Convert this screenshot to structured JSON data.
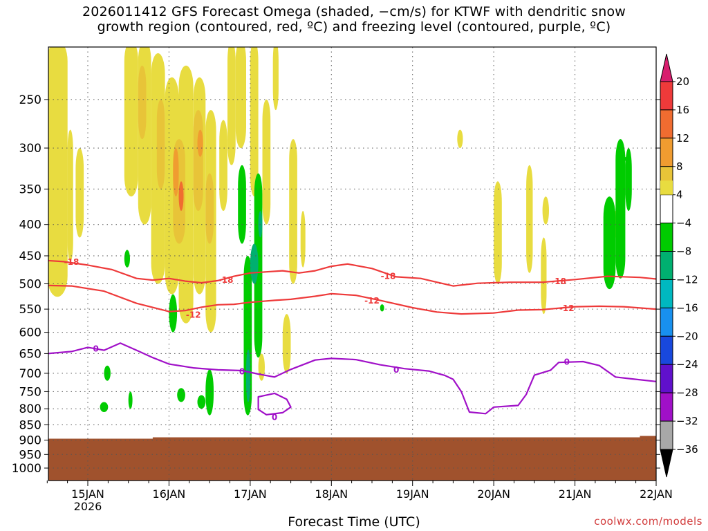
{
  "title": {
    "line1": "2026011412 GFS Forecast Omega (shaded, −cm/s) for KTWF with dendritic snow",
    "line2": "growth region (contoured, red, ºC) and freezing level (contoured, purple, ºC)"
  },
  "footer": {
    "xlabel": "Forecast Time (UTC)",
    "credit": "coolwx.com/models"
  },
  "chart_data": {
    "type": "heatmap",
    "xlabel": "Forecast Time (UTC)",
    "ylabel": "",
    "x_range": [
      "2026-01-14T12",
      "2026-01-22T00"
    ],
    "y_range_hpa": [
      200,
      1050
    ],
    "y_scale": "log-pressure",
    "x_ticks": [
      {
        "label": "15JAN",
        "sub": "2026",
        "day": 15
      },
      {
        "label": "16JAN",
        "sub": "",
        "day": 16
      },
      {
        "label": "17JAN",
        "sub": "",
        "day": 17
      },
      {
        "label": "18JAN",
        "sub": "",
        "day": 18
      },
      {
        "label": "19JAN",
        "sub": "",
        "day": 19
      },
      {
        "label": "20JAN",
        "sub": "",
        "day": 20
      },
      {
        "label": "21JAN",
        "sub": "",
        "day": 21
      },
      {
        "label": "22JAN",
        "sub": "",
        "day": 22
      }
    ],
    "y_ticks": [
      "250",
      "300",
      "350",
      "400",
      "450",
      "500",
      "550",
      "600",
      "650",
      "700",
      "750",
      "800",
      "850",
      "900",
      "950",
      "1000"
    ],
    "grid": true,
    "colorbar": {
      "labels": [
        "20",
        "16",
        "12",
        "8",
        "4",
        "−4",
        "−8",
        "−12",
        "−16",
        "−20",
        "−24",
        "−28",
        "−32",
        "−36"
      ],
      "colors": [
        "#d81e6e",
        "#ee3a3a",
        "#f06c30",
        "#f09c30",
        "#e8c438",
        "#e8dc40",
        "#ffffff",
        "#00cc00",
        "#00b070",
        "#00b8c0",
        "#1890ee",
        "#1848dd",
        "#6010cc",
        "#a010c8",
        "#a8a8a8",
        "#000000"
      ]
    },
    "contours": [
      {
        "name": "-18",
        "color": "#ee3a3a",
        "points": [
          [
            14.5,
            458
          ],
          [
            14.7,
            460
          ],
          [
            15.0,
            466
          ],
          [
            15.3,
            474
          ],
          [
            15.6,
            490
          ],
          [
            15.8,
            493
          ],
          [
            16.0,
            490
          ],
          [
            16.2,
            495
          ],
          [
            16.4,
            498
          ],
          [
            16.6,
            494
          ],
          [
            16.8,
            486
          ],
          [
            17.0,
            480
          ],
          [
            17.2,
            478
          ],
          [
            17.4,
            476
          ],
          [
            17.6,
            480
          ],
          [
            17.8,
            476
          ],
          [
            18.0,
            468
          ],
          [
            18.2,
            464
          ],
          [
            18.5,
            472
          ],
          [
            18.8,
            487
          ],
          [
            19.1,
            490
          ],
          [
            19.3,
            497
          ],
          [
            19.5,
            504
          ],
          [
            19.8,
            499
          ],
          [
            20.2,
            497
          ],
          [
            20.6,
            497
          ],
          [
            21.0,
            492
          ],
          [
            21.4,
            486
          ],
          [
            21.8,
            488
          ],
          [
            22.0,
            491
          ]
        ],
        "labels": [
          [
            14.8,
            460
          ],
          [
            16.7,
            492
          ],
          [
            18.7,
            485
          ],
          [
            20.8,
            495
          ]
        ]
      },
      {
        "name": "-12",
        "color": "#ee3a3a",
        "points": [
          [
            14.5,
            503
          ],
          [
            14.8,
            504
          ],
          [
            15.2,
            514
          ],
          [
            15.6,
            538
          ],
          [
            16.0,
            555
          ],
          [
            16.2,
            553
          ],
          [
            16.4,
            546
          ],
          [
            16.6,
            541
          ],
          [
            16.8,
            540
          ],
          [
            17.0,
            536
          ],
          [
            17.3,
            532
          ],
          [
            17.5,
            530
          ],
          [
            17.8,
            524
          ],
          [
            18.0,
            519
          ],
          [
            18.3,
            522
          ],
          [
            18.6,
            532
          ],
          [
            19.0,
            547
          ],
          [
            19.3,
            556
          ],
          [
            19.6,
            560
          ],
          [
            20.0,
            558
          ],
          [
            20.3,
            552
          ],
          [
            20.6,
            551
          ],
          [
            21.0,
            545
          ],
          [
            21.3,
            544
          ],
          [
            21.6,
            545
          ],
          [
            22.0,
            550
          ]
        ],
        "labels": [
          [
            16.3,
            561
          ],
          [
            18.5,
            532
          ],
          [
            20.9,
            548
          ]
        ]
      },
      {
        "name": "0",
        "color": "#a010c8",
        "points": [
          [
            14.5,
            650
          ],
          [
            14.8,
            645
          ],
          [
            15.0,
            635
          ],
          [
            15.2,
            642
          ],
          [
            15.4,
            625
          ],
          [
            15.6,
            642
          ],
          [
            15.8,
            660
          ],
          [
            16.0,
            676
          ],
          [
            16.3,
            686
          ],
          [
            16.6,
            691
          ],
          [
            16.9,
            693
          ],
          [
            17.1,
            702
          ],
          [
            17.3,
            710
          ],
          [
            17.5,
            690
          ],
          [
            17.8,
            666
          ],
          [
            18.0,
            662
          ],
          [
            18.3,
            665
          ],
          [
            18.6,
            678
          ],
          [
            18.9,
            688
          ],
          [
            19.2,
            694
          ],
          [
            19.4,
            706
          ],
          [
            19.5,
            716
          ],
          [
            19.6,
            750
          ],
          [
            19.7,
            810
          ],
          [
            19.9,
            815
          ],
          [
            20.0,
            795
          ],
          [
            20.3,
            790
          ],
          [
            20.4,
            758
          ],
          [
            20.5,
            705
          ],
          [
            20.7,
            692
          ],
          [
            20.8,
            672
          ],
          [
            21.1,
            670
          ],
          [
            21.3,
            680
          ],
          [
            21.5,
            710
          ],
          [
            21.7,
            715
          ],
          [
            22.0,
            722
          ]
        ],
        "labels": [
          [
            15.1,
            638
          ],
          [
            16.9,
            695
          ],
          [
            18.8,
            690
          ],
          [
            20.9,
            670
          ]
        ]
      },
      {
        "name": "0",
        "color": "#a010c8",
        "points": [
          [
            17.1,
            785
          ],
          [
            17.1,
            765
          ],
          [
            17.3,
            755
          ],
          [
            17.45,
            772
          ],
          [
            17.5,
            795
          ],
          [
            17.4,
            812
          ],
          [
            17.2,
            818
          ],
          [
            17.1,
            802
          ],
          [
            17.1,
            785
          ]
        ],
        "labels": [
          [
            17.3,
            825
          ]
        ]
      }
    ],
    "terrain": {
      "color": "#a0522d",
      "top_hpa": 893
    }
  }
}
